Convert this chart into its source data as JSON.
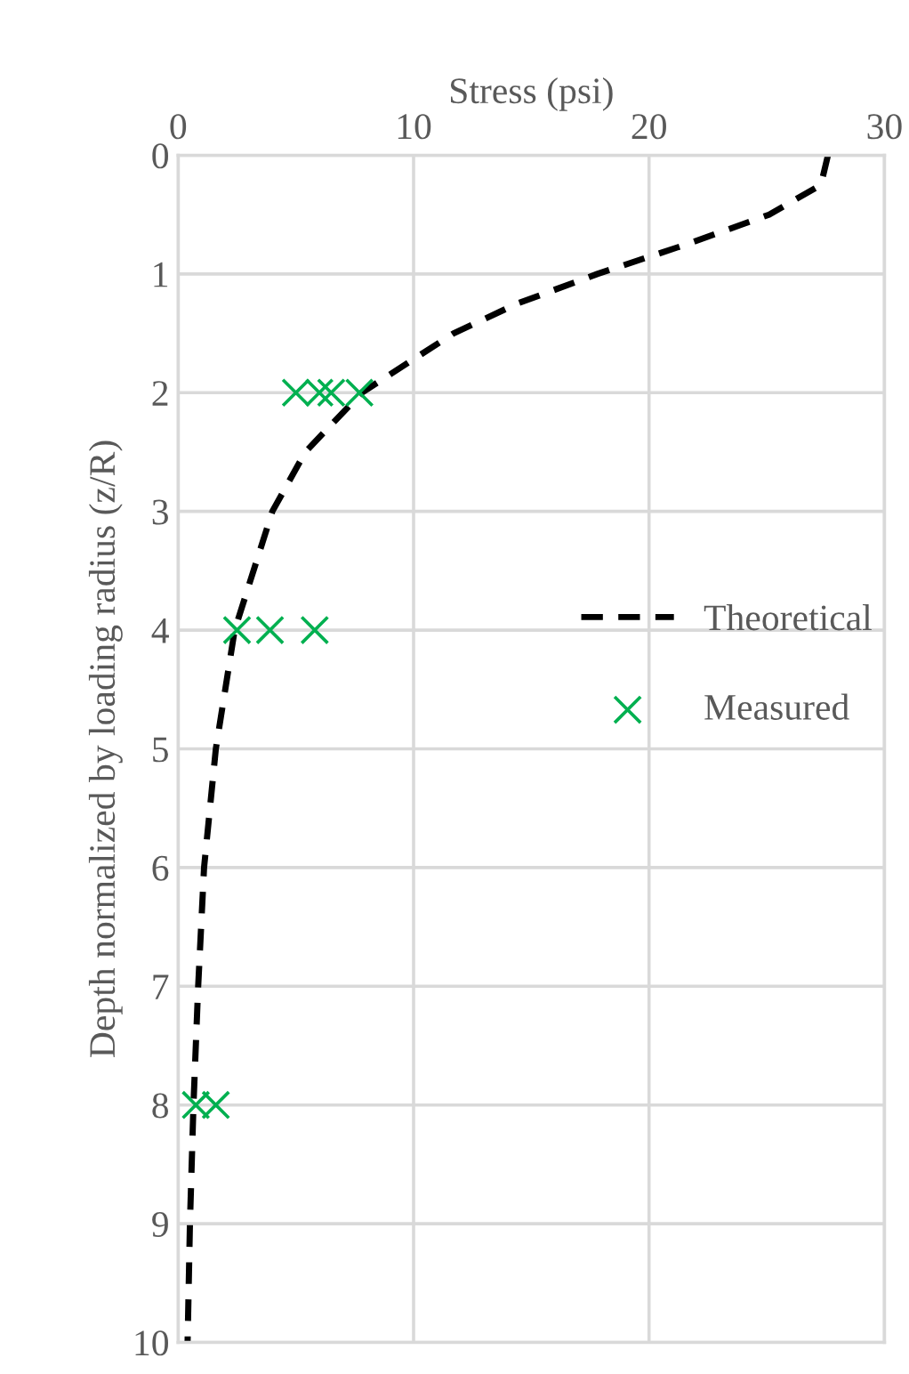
{
  "chart_data": {
    "type": "line",
    "xlabel": "Stress (psi)",
    "ylabel": "Depth normalized by loading radius (z/R)",
    "xlim": [
      0,
      30
    ],
    "xticks": [
      0,
      10,
      20,
      30
    ],
    "ylim": [
      10,
      0
    ],
    "yticks": [
      0,
      1,
      2,
      3,
      4,
      5,
      6,
      7,
      8,
      9,
      10
    ],
    "grid": true,
    "legend": "right",
    "series": [
      {
        "name": "Theoretical",
        "color": "#000000",
        "line_style": "dashed",
        "marker": "none",
        "x": [
          27.6,
          27.3,
          25.1,
          21.6,
          17.8,
          14.4,
          11.7,
          7.8,
          5.4,
          4.0,
          2.4,
          1.6,
          1.1,
          0.85,
          0.65,
          0.5,
          0.4
        ],
        "values": [
          0,
          0.25,
          0.5,
          0.75,
          1,
          1.25,
          1.5,
          2,
          2.5,
          3,
          4,
          5,
          6,
          7,
          8,
          9,
          10
        ]
      },
      {
        "name": "Measured",
        "type": "scatter",
        "color": "#00b050",
        "marker": "cross",
        "x": [
          5.0,
          6.0,
          6.5,
          7.7,
          2.5,
          3.9,
          5.8,
          0.75,
          1.6
        ],
        "values": [
          2,
          2,
          2,
          2,
          4,
          4,
          4,
          8,
          8
        ]
      }
    ]
  }
}
